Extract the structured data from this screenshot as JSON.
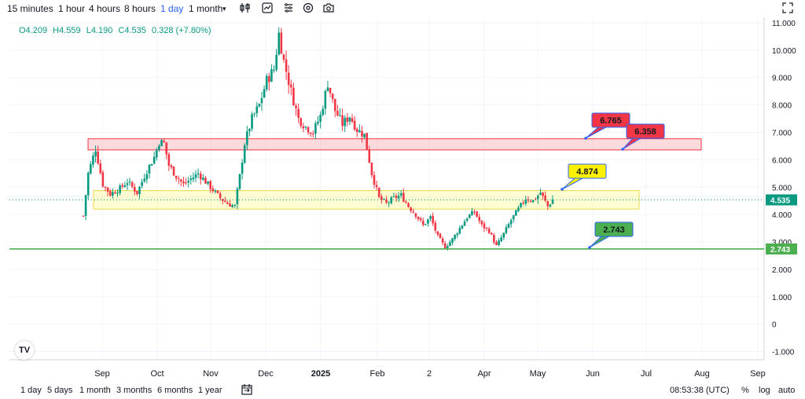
{
  "toolbar": {
    "timeframes": [
      "15 minutes",
      "1 hour",
      "4 hours",
      "8 hours",
      "1 day",
      "1 month"
    ],
    "active_timeframe": "1 day",
    "icons": [
      "indicator-icon",
      "compare-icon",
      "alert-icon",
      "settings-icon",
      "camera-icon",
      "fullscreen-icon"
    ]
  },
  "ohlc": {
    "open": "O4.209",
    "high": "H4.559",
    "low": "L4.190",
    "close": "C4.535",
    "change": "0.328 (+7.80%)"
  },
  "chart_data": {
    "type": "candlestick",
    "ylim": [
      -1.3,
      11.2
    ],
    "y_ticks": [
      "11.000",
      "10.000",
      "9.000",
      "8.000",
      "7.000",
      "6.000",
      "5.000",
      "4.000",
      "3.000",
      "2.000",
      "1.000",
      "0",
      "-1.000"
    ],
    "x_ticks": [
      "Sep",
      "Oct",
      "Nov",
      "Dec",
      "2025",
      "Feb",
      "2",
      "Apr",
      "May",
      "Jun",
      "Jul",
      "Aug",
      "Sep"
    ],
    "grid": true,
    "current_price": {
      "value": 4.535,
      "label": "4.535",
      "color": "#089981"
    },
    "support_line": {
      "value": 2.743,
      "label": "2.743",
      "color": "#4caf50"
    },
    "zones": [
      {
        "name": "resistance-zone",
        "low": 6.358,
        "high": 6.765,
        "color": "#f23645"
      },
      {
        "name": "mid-zone",
        "low": 4.2,
        "high": 4.874,
        "color": "#f2e33a"
      }
    ],
    "callouts": [
      {
        "label": "6.765",
        "color": "#f23645"
      },
      {
        "label": "6.358",
        "color": "#f23645"
      },
      {
        "label": "4.874",
        "color": "#fff200"
      },
      {
        "label": "2.743",
        "color": "#4caf50"
      }
    ],
    "anchors": [
      [
        0,
        3.95
      ],
      [
        2,
        5.5
      ],
      [
        5,
        6.4
      ],
      [
        8,
        5.1
      ],
      [
        11,
        4.75
      ],
      [
        15,
        4.95
      ],
      [
        18,
        5.2
      ],
      [
        22,
        4.8
      ],
      [
        26,
        5.6
      ],
      [
        29,
        6.1
      ],
      [
        31,
        6.65
      ],
      [
        33,
        6.6
      ],
      [
        35,
        5.8
      ],
      [
        38,
        5.4
      ],
      [
        41,
        5.1
      ],
      [
        44,
        5.3
      ],
      [
        47,
        5.5
      ],
      [
        50,
        5.2
      ],
      [
        53,
        4.9
      ],
      [
        56,
        4.6
      ],
      [
        59,
        4.4
      ],
      [
        62,
        4.3
      ],
      [
        64,
        5.4
      ],
      [
        66,
        6.6
      ],
      [
        69,
        7.5
      ],
      [
        72,
        8.0
      ],
      [
        75,
        8.9
      ],
      [
        78,
        9.3
      ],
      [
        80,
        10.6
      ],
      [
        82,
        9.6
      ],
      [
        85,
        8.5
      ],
      [
        88,
        7.5
      ],
      [
        91,
        7.2
      ],
      [
        94,
        7.0
      ],
      [
        97,
        7.6
      ],
      [
        100,
        8.8
      ],
      [
        103,
        7.8
      ],
      [
        106,
        7.3
      ],
      [
        109,
        7.6
      ],
      [
        112,
        7.1
      ],
      [
        115,
        6.9
      ],
      [
        118,
        5.5
      ],
      [
        121,
        4.6
      ],
      [
        124,
        4.4
      ],
      [
        127,
        4.6
      ],
      [
        130,
        4.7
      ],
      [
        133,
        4.3
      ],
      [
        136,
        4.0
      ],
      [
        139,
        3.6
      ],
      [
        142,
        3.9
      ],
      [
        145,
        3.2
      ],
      [
        148,
        2.8
      ],
      [
        151,
        3.1
      ],
      [
        154,
        3.5
      ],
      [
        157,
        3.9
      ],
      [
        160,
        4.1
      ],
      [
        163,
        3.6
      ],
      [
        166,
        3.4
      ],
      [
        169,
        2.85
      ],
      [
        172,
        3.3
      ],
      [
        175,
        3.8
      ],
      [
        178,
        4.2
      ],
      [
        181,
        4.6
      ],
      [
        184,
        4.5
      ],
      [
        187,
        4.8
      ],
      [
        190,
        4.3
      ],
      [
        192,
        4.535
      ]
    ],
    "candle_count": 193
  },
  "bottombar": {
    "ranges": [
      "1 day",
      "5 days",
      "1 month",
      "3 months",
      "6 months",
      "1 year"
    ],
    "time": "08:53:38 (UTC)",
    "options": [
      "%",
      "log",
      "auto"
    ]
  },
  "logo_text": "TV"
}
